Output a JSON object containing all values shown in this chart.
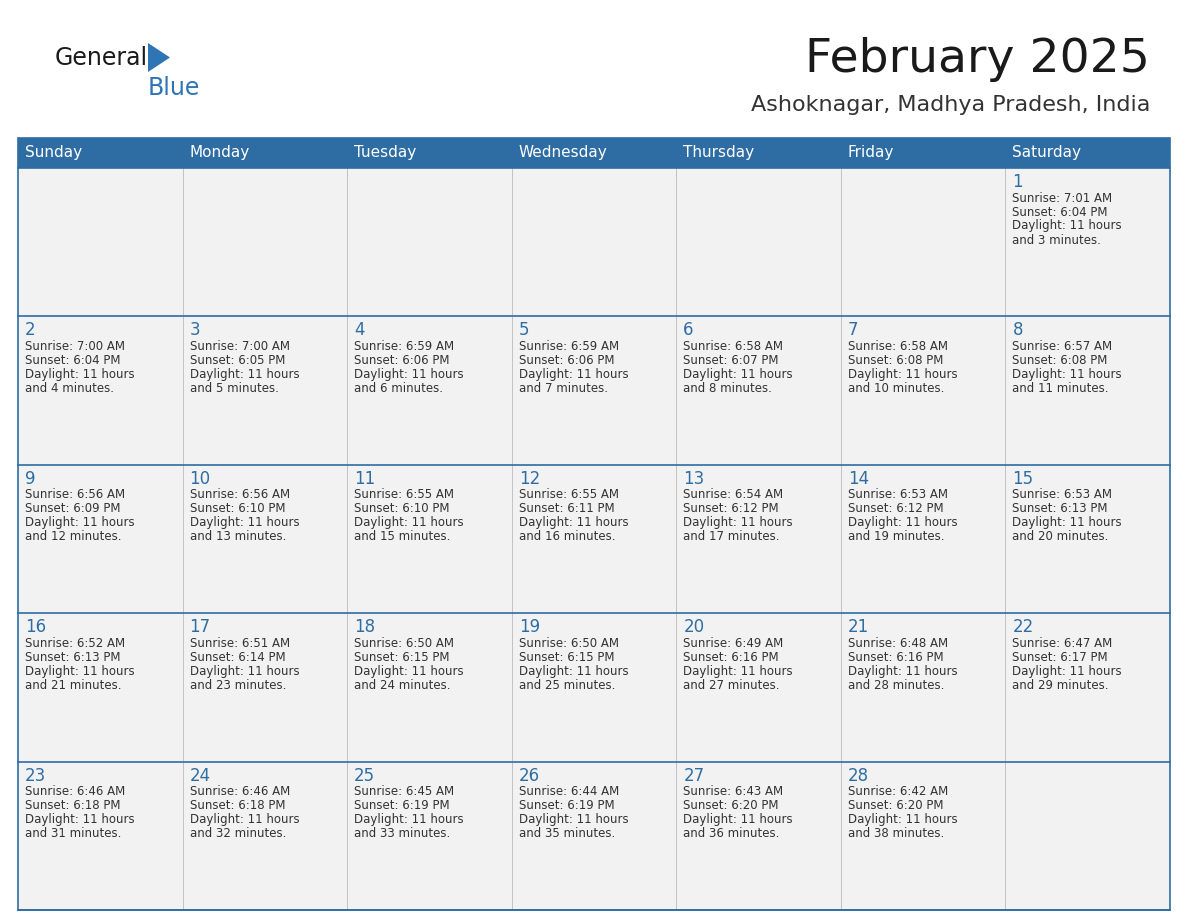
{
  "title": "February 2025",
  "subtitle": "Ashoknagar, Madhya Pradesh, India",
  "header_bg": "#2E6DA4",
  "header_text": "#FFFFFF",
  "cell_bg_light": "#F2F2F2",
  "cell_bg_white": "#FFFFFF",
  "day_headers": [
    "Sunday",
    "Monday",
    "Tuesday",
    "Wednesday",
    "Thursday",
    "Friday",
    "Saturday"
  ],
  "title_color": "#1a1a1a",
  "subtitle_color": "#333333",
  "line_color": "#2E6DA4",
  "day_number_color": "#2E6DA4",
  "text_color": "#333333",
  "logo_general_color": "#1a1a1a",
  "logo_blue_color": "#2E75B6",
  "logo_triangle_color": "#2E75B6",
  "weeks": [
    [
      null,
      null,
      null,
      null,
      null,
      null,
      {
        "day": 1,
        "sunrise": "7:01 AM",
        "sunset": "6:04 PM",
        "daylight": "11 hours and 3 minutes."
      }
    ],
    [
      {
        "day": 2,
        "sunrise": "7:00 AM",
        "sunset": "6:04 PM",
        "daylight": "11 hours and 4 minutes."
      },
      {
        "day": 3,
        "sunrise": "7:00 AM",
        "sunset": "6:05 PM",
        "daylight": "11 hours and 5 minutes."
      },
      {
        "day": 4,
        "sunrise": "6:59 AM",
        "sunset": "6:06 PM",
        "daylight": "11 hours and 6 minutes."
      },
      {
        "day": 5,
        "sunrise": "6:59 AM",
        "sunset": "6:06 PM",
        "daylight": "11 hours and 7 minutes."
      },
      {
        "day": 6,
        "sunrise": "6:58 AM",
        "sunset": "6:07 PM",
        "daylight": "11 hours and 8 minutes."
      },
      {
        "day": 7,
        "sunrise": "6:58 AM",
        "sunset": "6:08 PM",
        "daylight": "11 hours and 10 minutes."
      },
      {
        "day": 8,
        "sunrise": "6:57 AM",
        "sunset": "6:08 PM",
        "daylight": "11 hours and 11 minutes."
      }
    ],
    [
      {
        "day": 9,
        "sunrise": "6:56 AM",
        "sunset": "6:09 PM",
        "daylight": "11 hours and 12 minutes."
      },
      {
        "day": 10,
        "sunrise": "6:56 AM",
        "sunset": "6:10 PM",
        "daylight": "11 hours and 13 minutes."
      },
      {
        "day": 11,
        "sunrise": "6:55 AM",
        "sunset": "6:10 PM",
        "daylight": "11 hours and 15 minutes."
      },
      {
        "day": 12,
        "sunrise": "6:55 AM",
        "sunset": "6:11 PM",
        "daylight": "11 hours and 16 minutes."
      },
      {
        "day": 13,
        "sunrise": "6:54 AM",
        "sunset": "6:12 PM",
        "daylight": "11 hours and 17 minutes."
      },
      {
        "day": 14,
        "sunrise": "6:53 AM",
        "sunset": "6:12 PM",
        "daylight": "11 hours and 19 minutes."
      },
      {
        "day": 15,
        "sunrise": "6:53 AM",
        "sunset": "6:13 PM",
        "daylight": "11 hours and 20 minutes."
      }
    ],
    [
      {
        "day": 16,
        "sunrise": "6:52 AM",
        "sunset": "6:13 PM",
        "daylight": "11 hours and 21 minutes."
      },
      {
        "day": 17,
        "sunrise": "6:51 AM",
        "sunset": "6:14 PM",
        "daylight": "11 hours and 23 minutes."
      },
      {
        "day": 18,
        "sunrise": "6:50 AM",
        "sunset": "6:15 PM",
        "daylight": "11 hours and 24 minutes."
      },
      {
        "day": 19,
        "sunrise": "6:50 AM",
        "sunset": "6:15 PM",
        "daylight": "11 hours and 25 minutes."
      },
      {
        "day": 20,
        "sunrise": "6:49 AM",
        "sunset": "6:16 PM",
        "daylight": "11 hours and 27 minutes."
      },
      {
        "day": 21,
        "sunrise": "6:48 AM",
        "sunset": "6:16 PM",
        "daylight": "11 hours and 28 minutes."
      },
      {
        "day": 22,
        "sunrise": "6:47 AM",
        "sunset": "6:17 PM",
        "daylight": "11 hours and 29 minutes."
      }
    ],
    [
      {
        "day": 23,
        "sunrise": "6:46 AM",
        "sunset": "6:18 PM",
        "daylight": "11 hours and 31 minutes."
      },
      {
        "day": 24,
        "sunrise": "6:46 AM",
        "sunset": "6:18 PM",
        "daylight": "11 hours and 32 minutes."
      },
      {
        "day": 25,
        "sunrise": "6:45 AM",
        "sunset": "6:19 PM",
        "daylight": "11 hours and 33 minutes."
      },
      {
        "day": 26,
        "sunrise": "6:44 AM",
        "sunset": "6:19 PM",
        "daylight": "11 hours and 35 minutes."
      },
      {
        "day": 27,
        "sunrise": "6:43 AM",
        "sunset": "6:20 PM",
        "daylight": "11 hours and 36 minutes."
      },
      {
        "day": 28,
        "sunrise": "6:42 AM",
        "sunset": "6:20 PM",
        "daylight": "11 hours and 38 minutes."
      },
      null
    ]
  ]
}
